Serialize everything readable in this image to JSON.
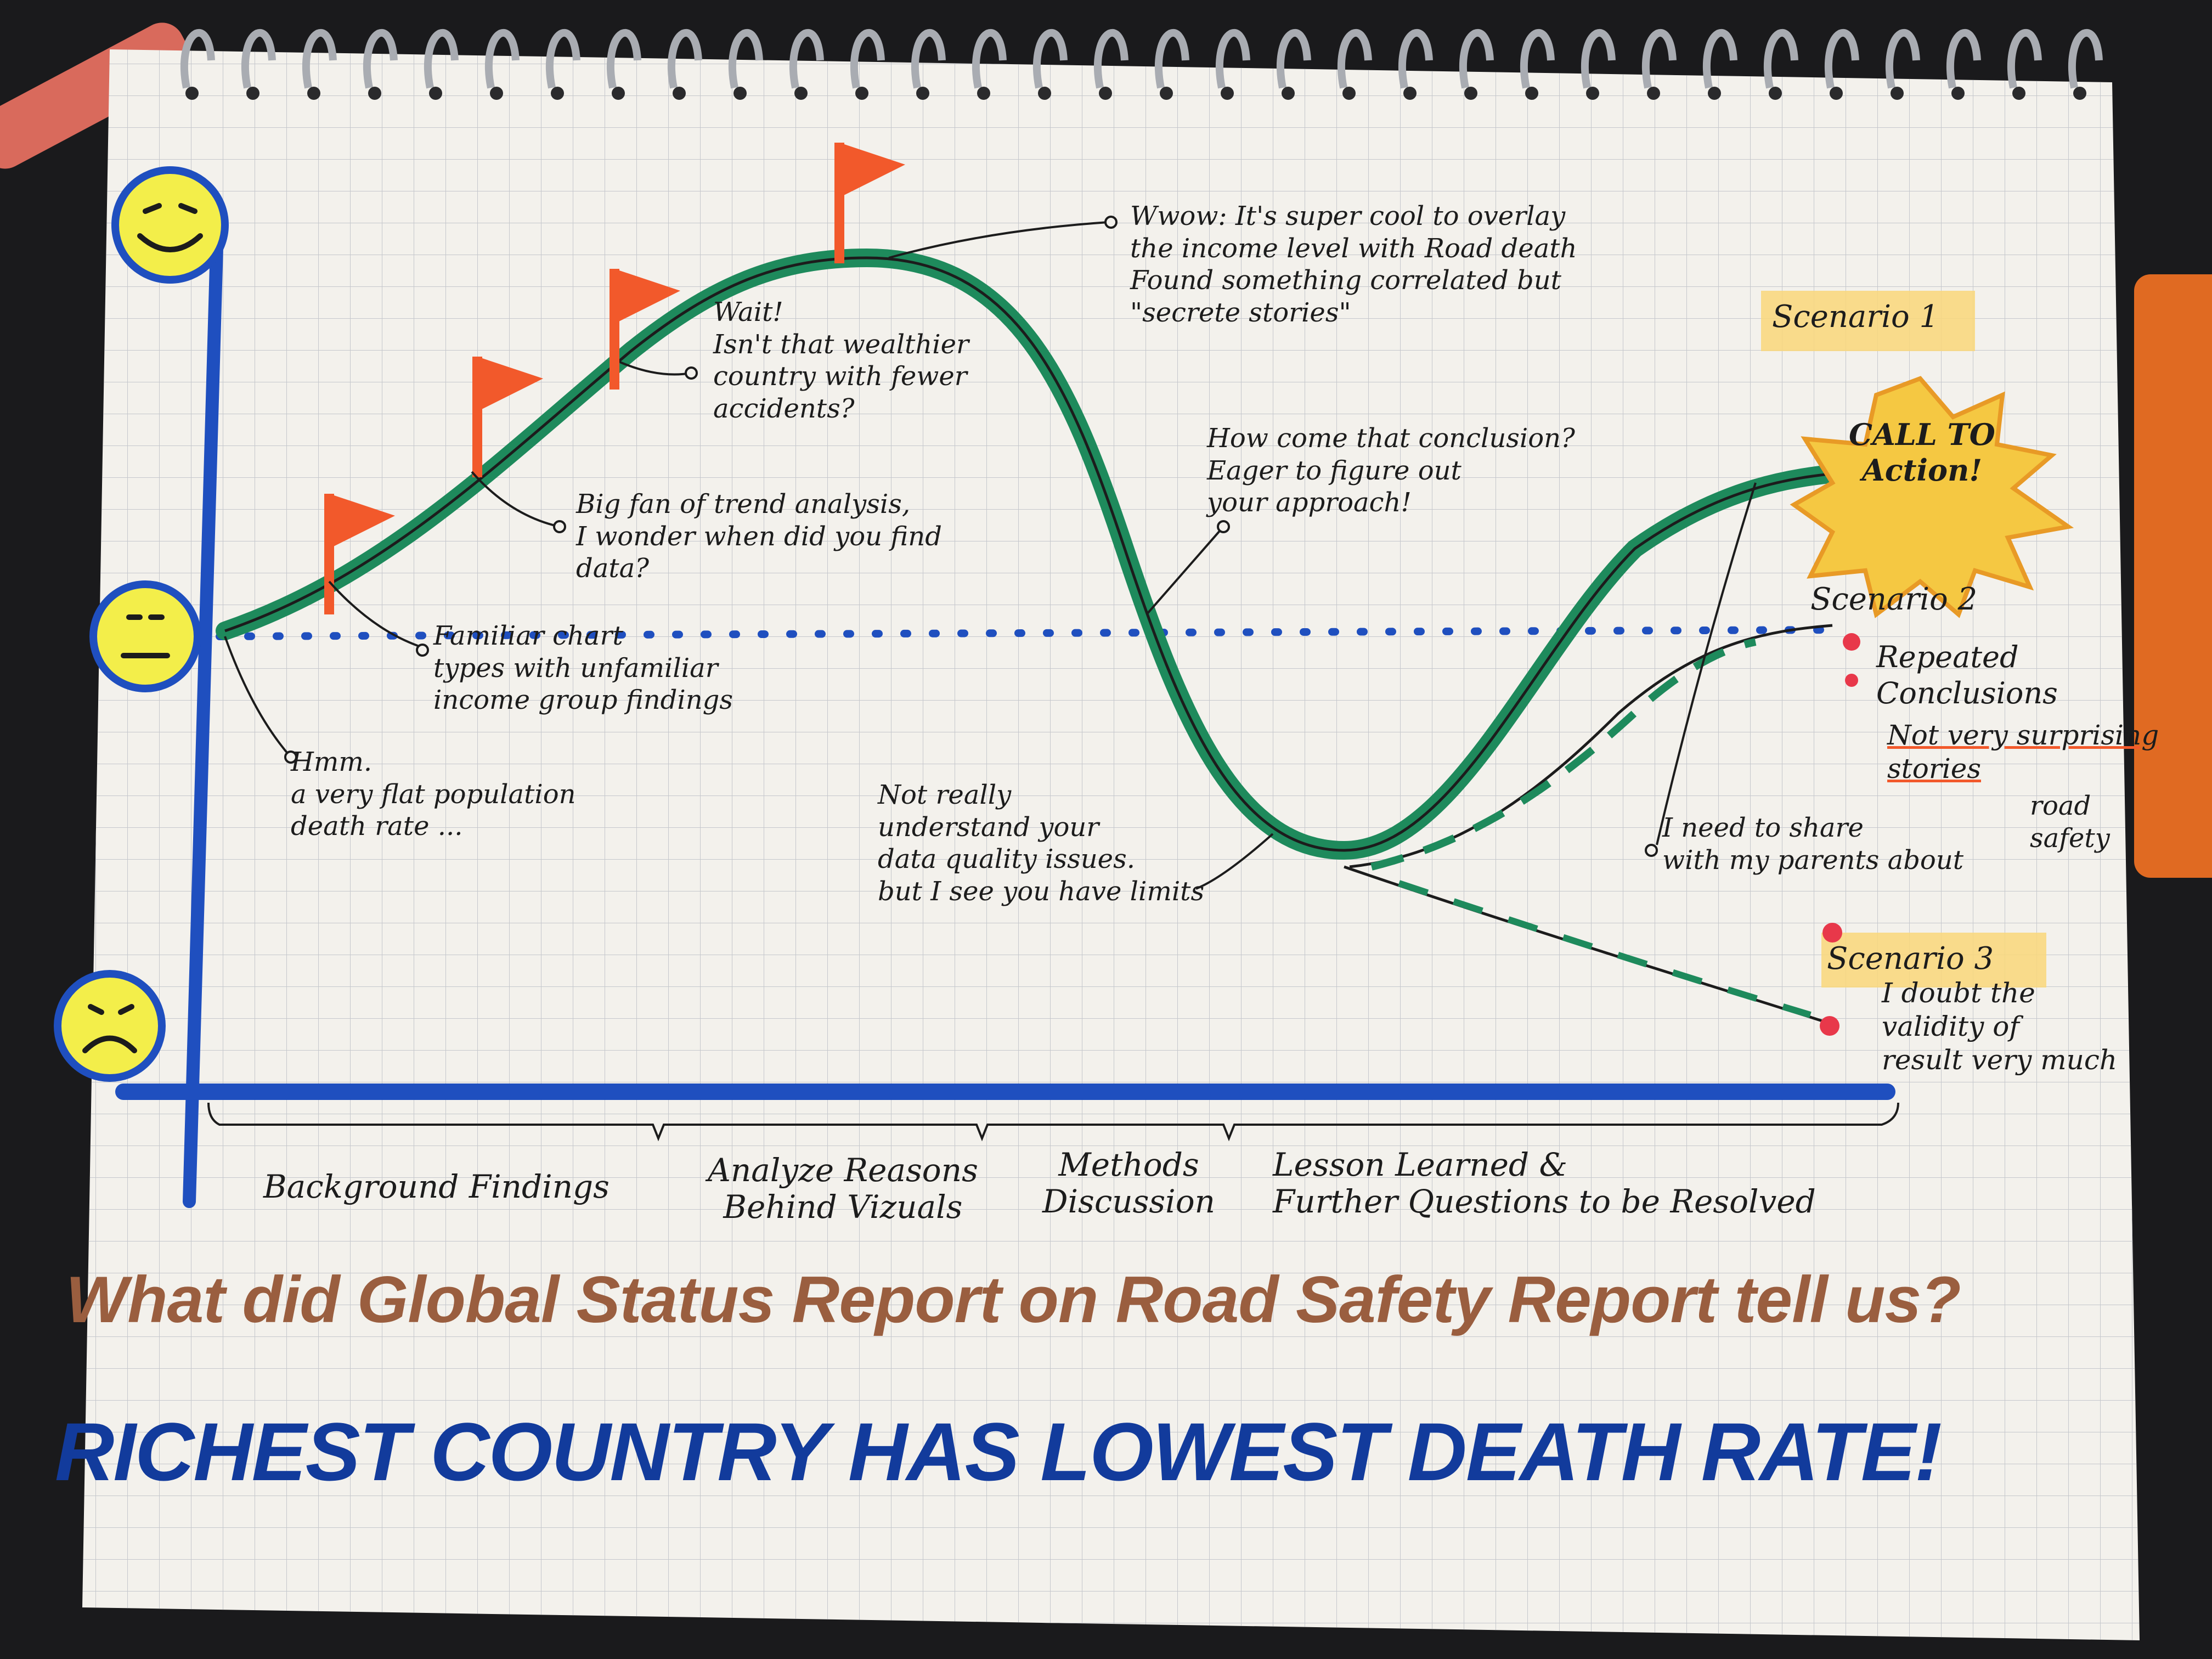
{
  "title": "What did Global Status Report on Road Safety Report tell us?",
  "headline": "RICHEST COUNTRY HAS LOWEST DEATH RATE!",
  "faces": [
    {
      "icon": "happy-face-icon"
    },
    {
      "icon": "neutral-face-icon"
    },
    {
      "icon": "sad-face-icon"
    }
  ],
  "annotations": {
    "flat_rate": "Hmm.\na very flat population\ndeath rate ...",
    "familiar_chart": "Familiar chart\ntypes with unfamiliar\nincome group findings",
    "trend_analysis": "Big fan of trend analysis,\nI wonder when did you find\ndata?",
    "wait": "Wait!\nIsn't that wealthier\ncountry with fewer\naccidents?",
    "wow": "Wwow: It's super cool to overlay\nthe income level with Road death\nFound something correlated but\n\"secrete stories\"",
    "how_come": "How come that conclusion?\nEager to figure out\nyour approach!",
    "not_understand": "Not really\nunderstand your\ndata quality issues.\nbut I see you have limits",
    "share_parents": "I need to share\nwith my parents about",
    "road_safety": "road\nsafety",
    "call_to_action": "CALL TO\nAction!"
  },
  "scenarios": {
    "s1": {
      "label": "Scenario 1"
    },
    "s2": {
      "label": "Scenario 2",
      "note1": "Repeated\nConclusions",
      "note2": "Not very surprising\nstories"
    },
    "s3": {
      "label": "Scenario 3",
      "note": "I doubt the\nvalidity of\nresult very much"
    }
  },
  "phases": [
    {
      "label": "Background Findings"
    },
    {
      "label": "Analyze Reasons\nBehind Vizuals"
    },
    {
      "label": "Methods\nDiscussion"
    },
    {
      "label": "Lesson Learned &\nFurther Questions to be Resolved"
    }
  ],
  "colors": {
    "background": "#1a1a1c",
    "paper": "#f3f1ec",
    "grid": "#b9bcc4",
    "axis_blue": "#1f4fbf",
    "curve_green": "#1e8a5c",
    "flag_orange": "#f2592b",
    "face_yellow": "#f3ee4a",
    "title_brown": "#9a5e3f",
    "headline_blue": "#123b9c",
    "highlight_yellow": "#f9d77a",
    "burst_yellow": "#f5c842"
  }
}
